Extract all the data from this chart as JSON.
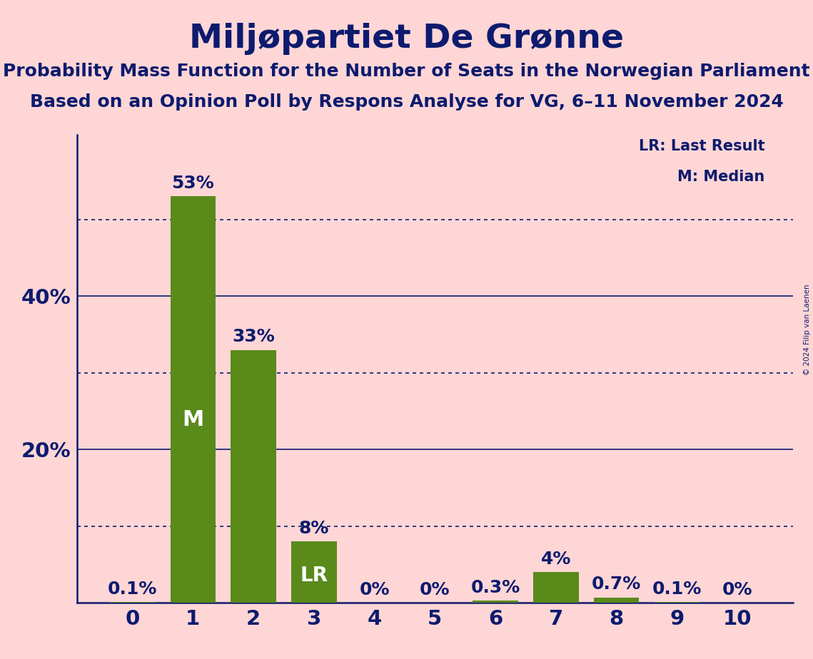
{
  "title": "Miljøpartiet De Grønne",
  "subtitle1": "Probability Mass Function for the Number of Seats in the Norwegian Parliament",
  "subtitle2": "Based on an Opinion Poll by Respons Analyse for VG, 6–11 November 2024",
  "copyright": "© 2024 Filip van Laenen",
  "categories": [
    0,
    1,
    2,
    3,
    4,
    5,
    6,
    7,
    8,
    9,
    10
  ],
  "values": [
    0.1,
    53.0,
    33.0,
    8.0,
    0.0,
    0.0,
    0.3,
    4.0,
    0.7,
    0.1,
    0.0
  ],
  "bar_color": "#5a8a1a",
  "background_color": "#ffd6d6",
  "text_color": "#0d1b6e",
  "title_fontsize": 34,
  "subtitle_fontsize": 18,
  "label_fontsize": 18,
  "tick_fontsize": 21,
  "inside_label_fontsize": 22,
  "ylabel_ticks": [
    20,
    40
  ],
  "dotted_lines": [
    10,
    30,
    50
  ],
  "solid_lines": [
    20,
    40
  ],
  "ylim": [
    0,
    61
  ],
  "median_bar": 1,
  "lr_bar": 3,
  "legend_lr": "LR: Last Result",
  "legend_m": "M: Median"
}
